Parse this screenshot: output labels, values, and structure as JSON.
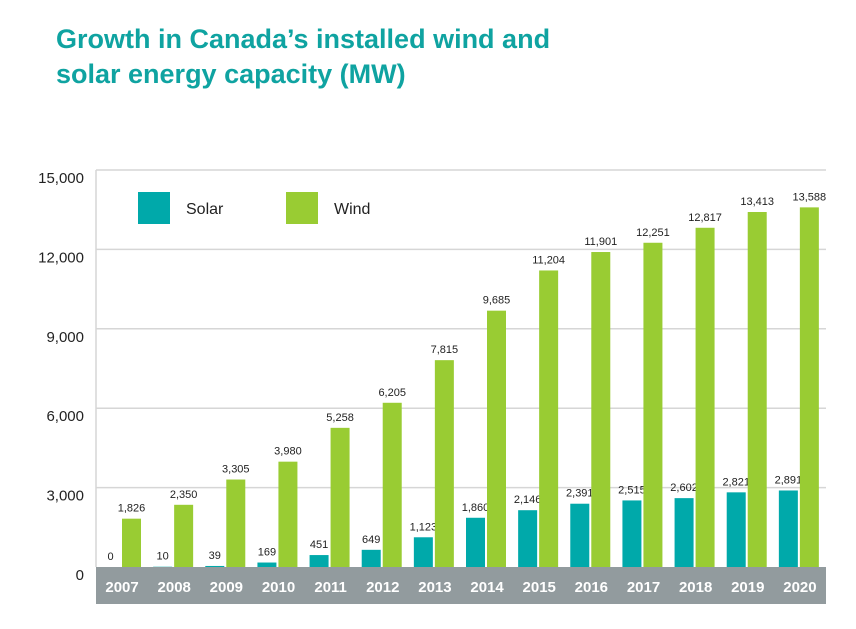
{
  "chart_data": {
    "type": "bar",
    "title": "Growth in Canada’s installed wind and solar energy capacity (MW)",
    "title_lines": [
      "Growth in Canada’s installed wind and",
      "solar energy capacity (MW)"
    ],
    "xlabel": "",
    "ylabel": "",
    "ylim": [
      0,
      15000
    ],
    "yticks": [
      0,
      3000,
      6000,
      9000,
      12000,
      15000
    ],
    "ytick_labels": [
      "0",
      "3,000",
      "6,000",
      "9,000",
      "12,000",
      "15,000"
    ],
    "grid": true,
    "legend_position": "top-left",
    "categories": [
      "2007",
      "2008",
      "2009",
      "2010",
      "2011",
      "2012",
      "2013",
      "2014",
      "2015",
      "2016",
      "2017",
      "2018",
      "2019",
      "2020"
    ],
    "series": [
      {
        "name": "Solar",
        "color": "#00a9aa",
        "values": [
          0,
          10,
          39,
          169,
          451,
          649,
          1123,
          1860,
          2146,
          2391,
          2515,
          2602,
          2821,
          2891
        ],
        "labels": [
          "0",
          "10",
          "39",
          "169",
          "451",
          "649",
          "1,123",
          "1,860",
          "2,146",
          "2,391",
          "2,515",
          "2,602",
          "2,821",
          "2,891"
        ]
      },
      {
        "name": "Wind",
        "color": "#99cc33",
        "values": [
          1826,
          2350,
          3305,
          3980,
          5258,
          6205,
          7815,
          9685,
          11204,
          11901,
          12251,
          12817,
          13413,
          13588
        ],
        "labels": [
          "1,826",
          "2,350",
          "3,305",
          "3,980",
          "5,258",
          "6,205",
          "7,815",
          "9,685",
          "11,204",
          "11,901",
          "12,251",
          "12,817",
          "13,413",
          "13,588"
        ]
      }
    ],
    "colors": {
      "title": "#0fa3a1",
      "axis_band": "#929b9e",
      "grid": "#d6d6d6"
    }
  }
}
